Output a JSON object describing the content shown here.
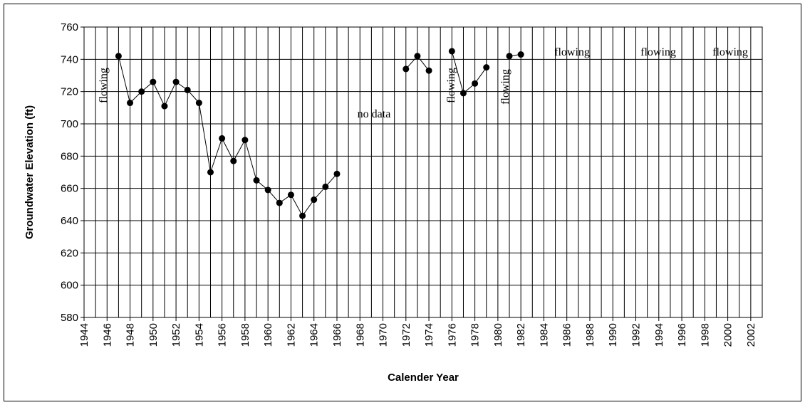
{
  "chart_data": {
    "type": "line",
    "xlabel": "Calender Year",
    "ylabel": "Groundwater Elevation (ft)",
    "x": [
      1947,
      1948,
      1949,
      1950,
      1951,
      1952,
      1953,
      1954,
      1955,
      1956,
      1957,
      1958,
      1959,
      1960,
      1961,
      1962,
      1963,
      1964,
      1965,
      1966,
      1967,
      1968,
      1969,
      1970,
      1971,
      1972,
      1973,
      1974,
      1975,
      1976,
      1977,
      1978,
      1979,
      1980,
      1981,
      1982
    ],
    "series": [
      {
        "color": "#000000",
        "values": [
          742,
          713,
          720,
          726,
          711,
          726,
          721,
          713,
          670,
          691,
          677,
          690,
          665,
          659,
          651,
          656,
          643,
          653,
          661,
          669,
          null,
          null,
          null,
          null,
          null,
          734,
          742,
          733,
          null,
          745,
          719,
          725,
          735,
          null,
          742,
          743
        ]
      }
    ],
    "xlim": [
      1944,
      2003
    ],
    "xticks": [
      1944,
      1946,
      1948,
      1950,
      1952,
      1954,
      1956,
      1958,
      1960,
      1962,
      1964,
      1966,
      1968,
      1970,
      1972,
      1974,
      1976,
      1978,
      1980,
      1982,
      1984,
      1986,
      1988,
      1990,
      1992,
      1994,
      1996,
      1998,
      2000,
      2002
    ],
    "xminorticks": [
      1945,
      1947,
      1949,
      1951,
      1953,
      1955,
      1957,
      1959,
      1961,
      1963,
      1965,
      1967,
      1969,
      1971,
      1973,
      1975,
      1977,
      1979,
      1981,
      1983,
      1985,
      1987,
      1989,
      1991,
      1993,
      1995,
      1997,
      1999,
      2001
    ],
    "ylim": [
      580,
      760
    ],
    "yticks": [
      580,
      600,
      620,
      640,
      660,
      680,
      700,
      720,
      740,
      760
    ],
    "grid": true,
    "annotations": [
      "flowing",
      "no data",
      "flowing",
      "flowing",
      "flowing",
      "flowing",
      "flowing"
    ]
  }
}
